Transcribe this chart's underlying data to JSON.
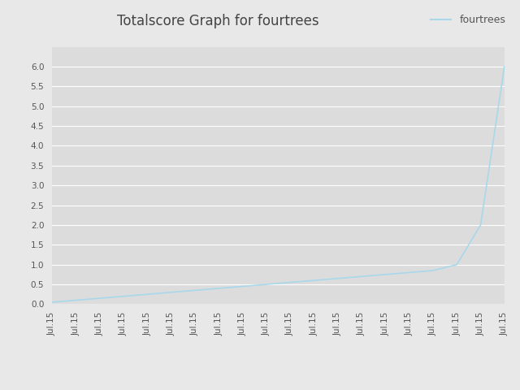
{
  "title": "Totalscore Graph for fourtrees",
  "legend_label": "fourtrees",
  "line_color": "#a8d8ea",
  "fig_bg_color": "#e8e8e8",
  "plot_bg_color": "#dcdcdc",
  "ylim": [
    0.0,
    6.5
  ],
  "yticks": [
    0.0,
    0.5,
    1.0,
    1.5,
    2.0,
    2.5,
    3.0,
    3.5,
    4.0,
    4.5,
    5.0,
    5.5,
    6.0
  ],
  "num_points": 20,
  "x_labels": [
    "Jul.15",
    "Jul.15",
    "Jul.15",
    "Jul.15",
    "Jul.15",
    "Jul.15",
    "Jul.15",
    "Jul.15",
    "Jul.15",
    "Jul.15",
    "Jul.15",
    "Jul.15",
    "Jul.15",
    "Jul.15",
    "Jul.15",
    "Jul.15",
    "Jul.15",
    "Jul.15",
    "Jul.15",
    "Jul.15"
  ],
  "y_values": [
    0.05,
    0.1,
    0.15,
    0.2,
    0.25,
    0.3,
    0.35,
    0.4,
    0.45,
    0.5,
    0.55,
    0.6,
    0.65,
    0.7,
    0.75,
    0.8,
    0.85,
    1.0,
    2.0,
    6.0
  ],
  "title_fontsize": 12,
  "tick_fontsize": 7.5,
  "legend_fontsize": 9,
  "grid_color": "#ffffff",
  "tick_color": "#555555",
  "title_color": "#444444"
}
